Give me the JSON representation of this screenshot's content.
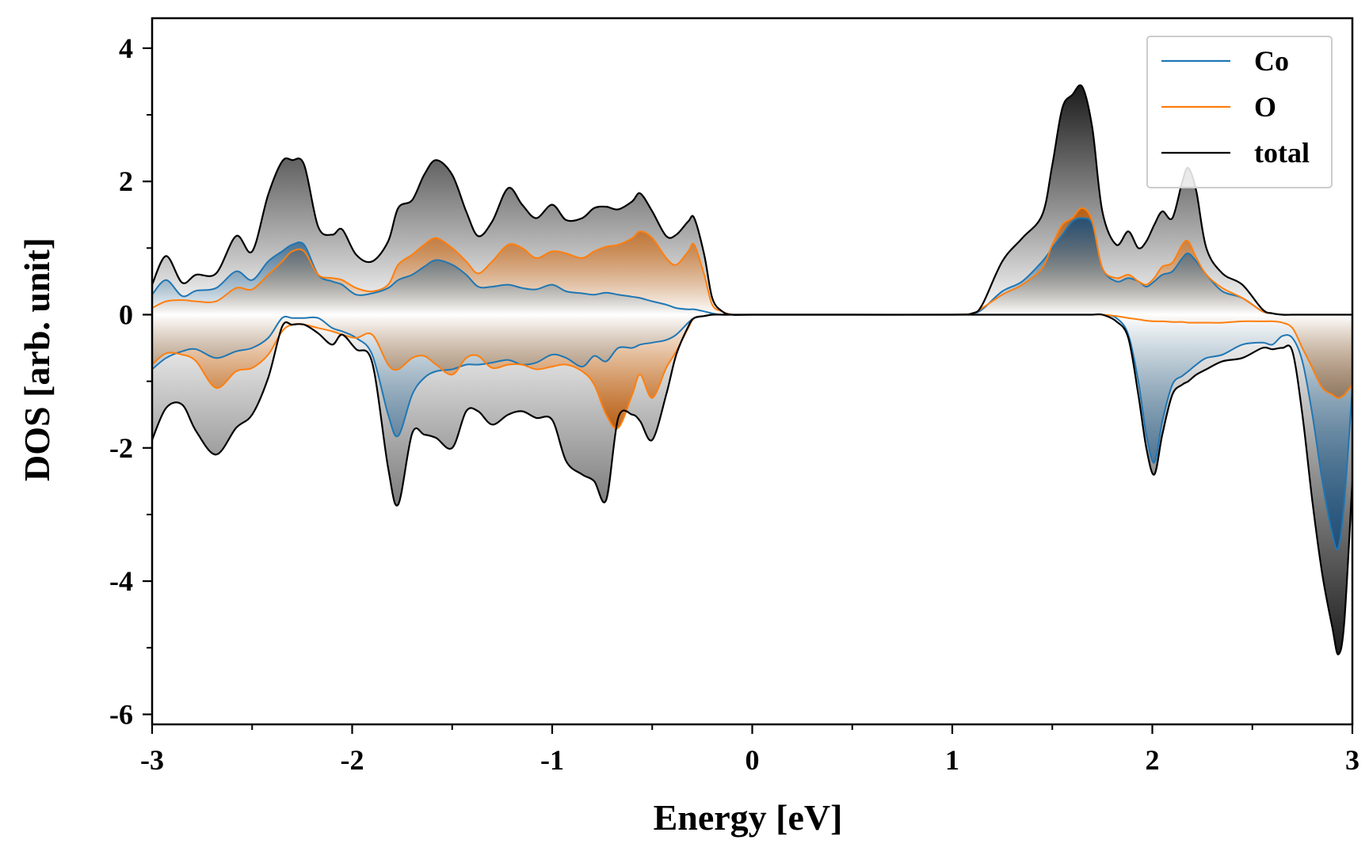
{
  "chart_data": {
    "type": "area",
    "title": "",
    "xlabel": "Energy [eV]",
    "ylabel": "DOS [arb. unit]",
    "xlim": [
      -3,
      3
    ],
    "ylim": [
      -6.15,
      4.45
    ],
    "xticks": [
      -3,
      -2,
      -1,
      0,
      1,
      2,
      3
    ],
    "xtick_labels": [
      "-3",
      "-2",
      "-1",
      "0",
      "1",
      "2",
      "3"
    ],
    "yticks": [
      -6,
      -4,
      -2,
      0,
      2,
      4
    ],
    "ytick_labels": [
      "-6",
      "-4",
      "-2",
      "0",
      "2",
      "4"
    ],
    "legend_position": "top-right",
    "grid": false,
    "x": [
      -3.0,
      -2.93,
      -2.85,
      -2.78,
      -2.68,
      -2.58,
      -2.5,
      -2.42,
      -2.35,
      -2.3,
      -2.24,
      -2.17,
      -2.1,
      -2.05,
      -1.98,
      -1.9,
      -1.82,
      -1.77,
      -1.7,
      -1.64,
      -1.58,
      -1.5,
      -1.43,
      -1.37,
      -1.3,
      -1.22,
      -1.15,
      -1.08,
      -1.0,
      -0.93,
      -0.85,
      -0.79,
      -0.73,
      -0.67,
      -0.6,
      -0.56,
      -0.5,
      -0.43,
      -0.38,
      -0.32,
      -0.29,
      -0.24,
      -0.2,
      -0.15,
      -0.1,
      0.0,
      0.5,
      1.0,
      1.1,
      1.15,
      1.25,
      1.35,
      1.45,
      1.5,
      1.55,
      1.6,
      1.65,
      1.7,
      1.75,
      1.82,
      1.88,
      1.93,
      1.97,
      2.01,
      2.05,
      2.1,
      2.15,
      2.18,
      2.22,
      2.27,
      2.35,
      2.45,
      2.55,
      2.6,
      2.65,
      2.7,
      2.75,
      2.8,
      2.85,
      2.9,
      2.93,
      2.96,
      3.0
    ],
    "series": [
      {
        "name": "Co",
        "color": "#1f77b4",
        "up": [
          0.3,
          0.52,
          0.28,
          0.36,
          0.4,
          0.65,
          0.52,
          0.8,
          0.95,
          1.05,
          1.05,
          0.6,
          0.5,
          0.45,
          0.3,
          0.32,
          0.4,
          0.52,
          0.6,
          0.72,
          0.82,
          0.75,
          0.6,
          0.42,
          0.42,
          0.45,
          0.4,
          0.38,
          0.45,
          0.35,
          0.32,
          0.3,
          0.33,
          0.3,
          0.27,
          0.25,
          0.2,
          0.15,
          0.1,
          0.08,
          0.08,
          0.05,
          0.02,
          0.0,
          0.0,
          0.0,
          0.0,
          0.0,
          0.02,
          0.08,
          0.35,
          0.5,
          0.8,
          1.0,
          1.2,
          1.4,
          1.45,
          1.35,
          0.7,
          0.5,
          0.55,
          0.5,
          0.42,
          0.5,
          0.6,
          0.65,
          0.85,
          0.92,
          0.8,
          0.6,
          0.35,
          0.25,
          0.05,
          0.02,
          0.0,
          0.0,
          0.0,
          0.0,
          0.0,
          0.0,
          0.0,
          0.0,
          0.0
        ],
        "down": [
          -0.82,
          -0.65,
          -0.55,
          -0.52,
          -0.65,
          -0.55,
          -0.5,
          -0.35,
          -0.05,
          -0.05,
          -0.05,
          -0.05,
          -0.2,
          -0.25,
          -0.35,
          -0.6,
          -1.5,
          -1.82,
          -1.2,
          -0.95,
          -0.85,
          -0.82,
          -0.75,
          -0.75,
          -0.72,
          -0.68,
          -0.75,
          -0.72,
          -0.6,
          -0.65,
          -0.78,
          -0.62,
          -0.7,
          -0.5,
          -0.5,
          -0.45,
          -0.42,
          -0.38,
          -0.3,
          -0.12,
          -0.05,
          -0.02,
          0.0,
          0.0,
          0.0,
          0.0,
          0.0,
          0.0,
          0.0,
          0.0,
          0.0,
          0.0,
          0.0,
          0.0,
          0.0,
          0.0,
          0.0,
          0.0,
          0.0,
          -0.05,
          -0.3,
          -1.0,
          -1.8,
          -2.22,
          -1.6,
          -1.05,
          -0.92,
          -0.85,
          -0.75,
          -0.65,
          -0.6,
          -0.45,
          -0.42,
          -0.45,
          -0.32,
          -0.35,
          -0.7,
          -1.5,
          -2.5,
          -3.3,
          -3.5,
          -2.8,
          -1.1
        ]
      },
      {
        "name": "O",
        "color": "#ff7f0e",
        "up": [
          0.1,
          0.2,
          0.22,
          0.2,
          0.2,
          0.4,
          0.38,
          0.6,
          0.8,
          0.95,
          0.95,
          0.6,
          0.55,
          0.52,
          0.4,
          0.35,
          0.45,
          0.75,
          0.9,
          1.05,
          1.15,
          1.0,
          0.8,
          0.62,
          0.8,
          1.05,
          1.0,
          0.85,
          0.95,
          0.92,
          0.85,
          0.95,
          1.02,
          1.05,
          1.15,
          1.25,
          1.15,
          0.85,
          0.75,
          0.95,
          1.05,
          0.6,
          0.15,
          0.05,
          0.0,
          0.0,
          0.0,
          0.0,
          0.02,
          0.1,
          0.3,
          0.45,
          0.7,
          1.05,
          1.35,
          1.45,
          1.6,
          1.4,
          0.7,
          0.55,
          0.6,
          0.5,
          0.45,
          0.55,
          0.72,
          0.78,
          1.05,
          1.1,
          0.85,
          0.6,
          0.4,
          0.25,
          0.05,
          0.02,
          0.0,
          0.0,
          0.0,
          0.0,
          0.0,
          0.0,
          0.0,
          0.0,
          0.0
        ],
        "down": [
          -0.75,
          -0.58,
          -0.6,
          -0.7,
          -1.1,
          -0.85,
          -0.8,
          -0.6,
          -0.25,
          -0.15,
          -0.15,
          -0.2,
          -0.25,
          -0.3,
          -0.35,
          -0.3,
          -0.75,
          -0.82,
          -0.65,
          -0.62,
          -0.75,
          -0.9,
          -0.65,
          -0.62,
          -0.8,
          -0.75,
          -0.75,
          -0.82,
          -0.78,
          -0.75,
          -0.85,
          -1.05,
          -1.5,
          -1.7,
          -1.2,
          -0.9,
          -1.25,
          -0.8,
          -0.55,
          -0.2,
          -0.05,
          -0.02,
          0.0,
          0.0,
          0.0,
          0.0,
          0.0,
          0.0,
          0.0,
          0.0,
          0.0,
          0.0,
          0.0,
          0.0,
          0.0,
          0.0,
          0.0,
          0.0,
          0.0,
          -0.02,
          -0.05,
          -0.07,
          -0.09,
          -0.1,
          -0.1,
          -0.11,
          -0.11,
          -0.12,
          -0.12,
          -0.12,
          -0.12,
          -0.1,
          -0.1,
          -0.1,
          -0.12,
          -0.2,
          -0.5,
          -0.8,
          -1.1,
          -1.2,
          -1.25,
          -1.2,
          -1.05
        ]
      },
      {
        "name": "total",
        "color": "#000000",
        "up": [
          0.45,
          0.88,
          0.48,
          0.6,
          0.62,
          1.18,
          0.95,
          1.8,
          2.3,
          2.32,
          2.25,
          1.32,
          1.2,
          1.28,
          0.9,
          0.8,
          1.1,
          1.6,
          1.72,
          2.1,
          2.32,
          2.1,
          1.55,
          1.18,
          1.4,
          1.9,
          1.65,
          1.45,
          1.65,
          1.42,
          1.45,
          1.6,
          1.62,
          1.58,
          1.7,
          1.82,
          1.55,
          1.18,
          1.2,
          1.4,
          1.45,
          0.9,
          0.25,
          0.05,
          0.0,
          0.0,
          0.0,
          0.0,
          0.02,
          0.15,
          0.8,
          1.15,
          1.5,
          2.25,
          3.1,
          3.3,
          3.42,
          2.8,
          1.55,
          1.05,
          1.25,
          1.0,
          1.1,
          1.35,
          1.55,
          1.45,
          2.0,
          2.2,
          1.85,
          1.0,
          0.62,
          0.45,
          0.08,
          0.02,
          0.0,
          0.0,
          0.0,
          0.0,
          0.0,
          0.0,
          0.0,
          0.0,
          0.0
        ],
        "down": [
          -1.88,
          -1.4,
          -1.35,
          -1.75,
          -2.1,
          -1.7,
          -1.5,
          -0.95,
          -0.18,
          -0.15,
          -0.15,
          -0.28,
          -0.45,
          -0.3,
          -0.52,
          -0.72,
          -2.3,
          -2.85,
          -1.78,
          -1.8,
          -1.85,
          -2.0,
          -1.45,
          -1.45,
          -1.65,
          -1.5,
          -1.45,
          -1.55,
          -1.58,
          -2.2,
          -2.4,
          -2.5,
          -2.78,
          -1.55,
          -1.5,
          -1.6,
          -1.88,
          -1.2,
          -0.6,
          -0.18,
          -0.05,
          -0.02,
          0.0,
          0.0,
          0.0,
          0.0,
          0.0,
          0.0,
          0.0,
          0.0,
          0.0,
          0.0,
          0.0,
          0.0,
          0.0,
          0.0,
          0.0,
          0.0,
          0.0,
          -0.1,
          -0.35,
          -1.2,
          -2.0,
          -2.4,
          -1.8,
          -1.2,
          -1.05,
          -1.0,
          -0.9,
          -0.82,
          -0.7,
          -0.65,
          -0.5,
          -0.52,
          -0.5,
          -0.55,
          -1.5,
          -2.8,
          -3.9,
          -4.7,
          -5.1,
          -4.6,
          -2.5
        ]
      }
    ]
  }
}
